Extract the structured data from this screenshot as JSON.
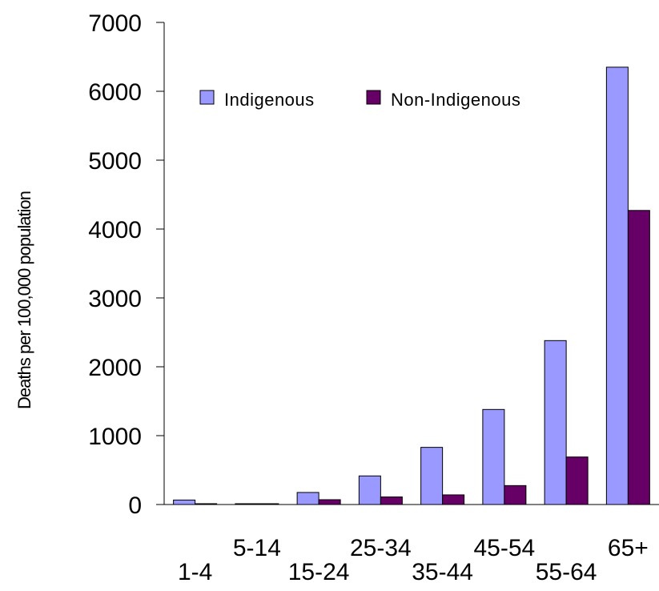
{
  "chart_data": {
    "type": "bar",
    "title": "",
    "xlabel": "",
    "ylabel": "Deaths per 100,000 population",
    "ylim": [
      0,
      7000
    ],
    "yticks": [
      0,
      1000,
      2000,
      3000,
      4000,
      5000,
      6000,
      7000
    ],
    "categories": [
      "1-4",
      "5-14",
      "15-24",
      "25-34",
      "35-44",
      "45-54",
      "55-64",
      "65+"
    ],
    "series": [
      {
        "name": "Indigenous",
        "color": "#9999ff",
        "values": [
          65,
          5,
          175,
          415,
          830,
          1380,
          2380,
          6350
        ]
      },
      {
        "name": "Non-Indigenous",
        "color": "#660066",
        "values": [
          12,
          5,
          70,
          110,
          140,
          275,
          690,
          4270
        ]
      }
    ],
    "legend_position": "top-left-inside",
    "grid": false
  }
}
